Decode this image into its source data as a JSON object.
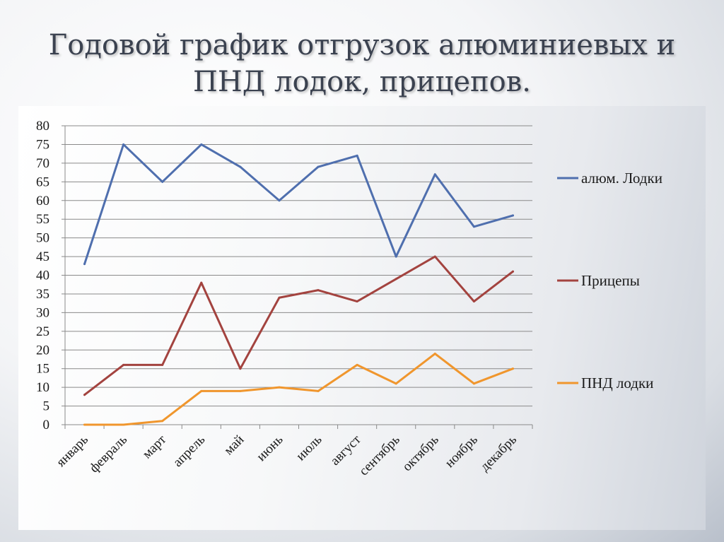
{
  "slide": {
    "title_line1": "Годовой график отгрузок алюминиевых и",
    "title_line2": "ПНД лодок, прицепов."
  },
  "chart_data": {
    "type": "line",
    "categories": [
      "январь",
      "февраль",
      "март",
      "апрель",
      "май",
      "июнь",
      "июль",
      "август",
      "сентябрь",
      "октябрь",
      "ноябрь",
      "декабрь"
    ],
    "series": [
      {
        "name": "алюм. Лодки",
        "color": "#4f6fae",
        "values": [
          43,
          75,
          65,
          75,
          69,
          60,
          69,
          72,
          45,
          67,
          53,
          56
        ]
      },
      {
        "name": "Прицепы",
        "color": "#a3433f",
        "values": [
          8,
          16,
          16,
          38,
          15,
          34,
          36,
          33,
          39,
          45,
          33,
          41
        ]
      },
      {
        "name": "ПНД лодки",
        "color": "#f0962d",
        "values": [
          0,
          0,
          1,
          9,
          9,
          10,
          9,
          16,
          11,
          19,
          11,
          15
        ]
      }
    ],
    "yticks": [
      "0",
      "5",
      "10",
      "15",
      "20",
      "25",
      "30",
      "35",
      "40",
      "45",
      "50",
      "55",
      "60",
      "65",
      "70",
      "75",
      "80"
    ],
    "ylim": [
      0,
      80
    ],
    "xlabel": "",
    "ylabel": "",
    "grid": true,
    "legend": "right"
  }
}
